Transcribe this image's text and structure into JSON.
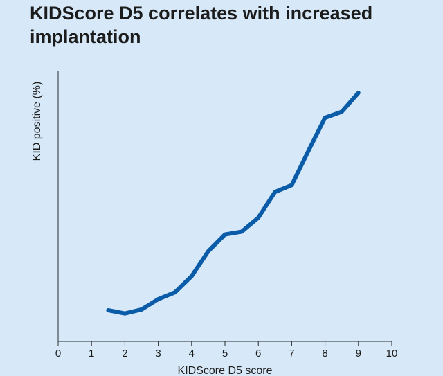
{
  "chart_data": {
    "type": "line",
    "title": "KIDScore D5 correlates with increased implantation",
    "xlabel": "KIDScore D5 score",
    "ylabel": "KID positive (%)",
    "xlim": [
      0,
      10
    ],
    "xticks": [
      0,
      1,
      2,
      3,
      4,
      5,
      6,
      7,
      8,
      9,
      10
    ],
    "ylim": [
      0,
      100
    ],
    "grid": false,
    "series": [
      {
        "color": "#0a5ba8",
        "x": [
          1.5,
          2,
          2.5,
          3,
          3.5,
          4,
          4.5,
          5,
          5.5,
          6,
          6.5,
          7,
          7.5,
          8,
          8.5,
          9
        ],
        "y": [
          11.5,
          10.3,
          11.8,
          15.6,
          18.1,
          24.1,
          33.3,
          39.5,
          40.5,
          45.7,
          55.2,
          57.7,
          70.3,
          82.6,
          84.8,
          91.8
        ]
      }
    ]
  }
}
